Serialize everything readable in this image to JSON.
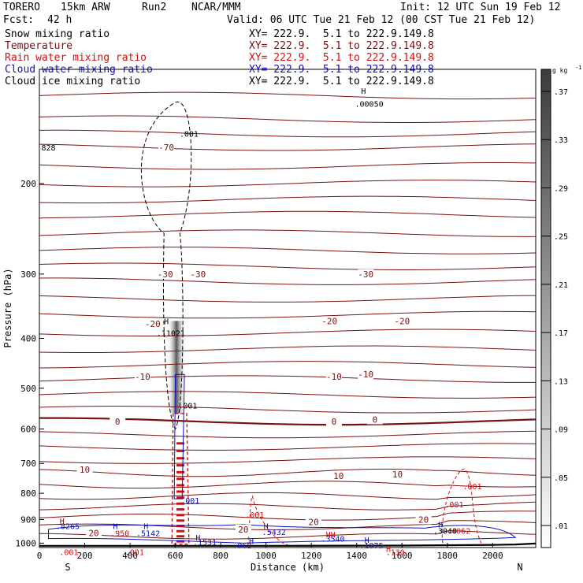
{
  "header": {
    "model": "TORERO",
    "resolution": "15km ARW",
    "run": "Run2",
    "center": "NCAR/MMM",
    "init": "Init: 12 UTC Sun 19 Feb 12",
    "fcst_label": "Fcst:",
    "fcst_hours": "42 h",
    "valid": "Valid: 06 UTC Tue 21 Feb 12 (00 CST Tue 21 Feb 12)"
  },
  "fields": [
    {
      "name": "Snow mixing ratio",
      "xy": "XY= 222.9.  5.1 to 222.9.149.8",
      "color": "#000000"
    },
    {
      "name": "Temperature",
      "xy": "XY= 222.9.  5.1 to 222.9.149.8",
      "color": "#7a1010"
    },
    {
      "name": "Rain water mixing ratio",
      "xy": "XY= 222.9.  5.1 to 222.9.149.8",
      "color": "#d01010"
    },
    {
      "name": "Cloud water mixing ratio",
      "xy": "XY= 222.9.  5.1 to 222.9.149.8",
      "color": "#1010c0"
    },
    {
      "name": "Cloud ice mixing ratio",
      "xy": "XY= 222.9.  5.1 to 222.9.149.8",
      "color": "#000000"
    }
  ],
  "chart_data": {
    "type": "cross-section contour",
    "xlabel": "Distance (km)",
    "ylabel": "Pressure (hPa)",
    "x_ticks": [
      0,
      200,
      400,
      600,
      800,
      1000,
      1200,
      1400,
      1600,
      1800,
      2000
    ],
    "xlim": [
      0,
      2190
    ],
    "y_ticks": [
      200,
      300,
      400,
      500,
      600,
      700,
      800,
      900,
      1000
    ],
    "ylim": [
      1020,
      120
    ],
    "y_scale": "log",
    "left_end": "S",
    "right_end": "N",
    "colorbar": {
      "unit": "g kg",
      "unit_sup": "-1",
      "ticks": [
        ".01",
        ".05",
        ".09",
        ".13",
        ".17",
        ".21",
        ".25",
        ".29",
        ".33",
        ".37"
      ]
    },
    "temperature_labels": [
      {
        "text": "-70",
        "x": 560,
        "p": 170
      },
      {
        "text": "-30",
        "x": 555,
        "p": 300
      },
      {
        "text": "-30",
        "x": 700,
        "p": 300
      },
      {
        "text": "-30",
        "x": 1440,
        "p": 300
      },
      {
        "text": "-20",
        "x": 500,
        "p": 375
      },
      {
        "text": "-20",
        "x": 1280,
        "p": 370
      },
      {
        "text": "-20",
        "x": 1600,
        "p": 370
      },
      {
        "text": "-10",
        "x": 455,
        "p": 475
      },
      {
        "text": "-10",
        "x": 1300,
        "p": 475
      },
      {
        "text": "-10",
        "x": 1440,
        "p": 470
      },
      {
        "text": "0",
        "x": 345,
        "p": 580
      },
      {
        "text": "0",
        "x": 1300,
        "p": 580
      },
      {
        "text": "0",
        "x": 1480,
        "p": 575
      },
      {
        "text": "10",
        "x": 200,
        "p": 720
      },
      {
        "text": "10",
        "x": 1320,
        "p": 740
      },
      {
        "text": "10",
        "x": 1580,
        "p": 735
      },
      {
        "text": "20",
        "x": 240,
        "p": 955
      },
      {
        "text": "20",
        "x": 900,
        "p": 940
      },
      {
        "text": "20",
        "x": 1210,
        "p": 910
      },
      {
        "text": "20",
        "x": 1695,
        "p": 900
      }
    ],
    "extrema_labels": [
      {
        "text": "H",
        "x": 100,
        "p": 905,
        "color": "#7a1010"
      },
      {
        "text": ".8265",
        "x": 125,
        "p": 925,
        "color": "#1010c0"
      },
      {
        "text": "H",
        "x": 335,
        "p": 925,
        "color": "#1010c0"
      },
      {
        "text": ".950",
        "x": 355,
        "p": 955,
        "color": "#d01010"
      },
      {
        "text": "H",
        "x": 470,
        "p": 925,
        "color": "#1010c0"
      },
      {
        "text": ".5142",
        "x": 480,
        "p": 955,
        "color": "#1010c0"
      },
      {
        "text": "H",
        "x": 700,
        "p": 975,
        "color": "#1010c0"
      },
      {
        "text": ".1531",
        "x": 730,
        "p": 995,
        "color": "#1010c0"
      },
      {
        "text": "H",
        "x": 935,
        "p": 990,
        "color": "#1010c0"
      },
      {
        "text": ".062",
        "x": 895,
        "p": 1010,
        "color": "#1010c0"
      },
      {
        "text": "H",
        "x": 1000,
        "p": 925,
        "color": "#1010c0"
      },
      {
        "text": ".5432",
        "x": 1035,
        "p": 950,
        "color": "#1010c0"
      },
      {
        "text": "HH",
        "x": 1285,
        "p": 960,
        "color": "#d01010"
      },
      {
        "text": ".3540",
        "x": 1295,
        "p": 980,
        "color": "#1010c0"
      },
      {
        "text": "H",
        "x": 1445,
        "p": 985,
        "color": "#1010c0"
      },
      {
        "text": ".1875",
        "x": 1465,
        "p": 1010,
        "color": "#1010c0"
      },
      {
        "text": "H",
        "x": 1540,
        "p": 1025,
        "color": "#d01010"
      },
      {
        "text": ".130",
        "x": 1570,
        "p": 1040,
        "color": "#d01010"
      },
      {
        "text": "H",
        "x": 1770,
        "p": 920,
        "color": "#1010c0"
      },
      {
        "text": ".3040",
        "x": 1790,
        "p": 945,
        "color": "#000000"
      },
      {
        "text": ".4062",
        "x": 1850,
        "p": 945,
        "color": "#d01010"
      },
      {
        "text": ".001",
        "x": 1910,
        "p": 775,
        "color": "#d01010"
      },
      {
        "text": ".001",
        "x": 1830,
        "p": 840,
        "color": "#d01010"
      },
      {
        "text": ".001",
        "x": 950,
        "p": 880,
        "color": "#d01010"
      },
      {
        "text": ".001",
        "x": 130,
        "p": 1040,
        "color": "#d01010"
      },
      {
        "text": ".001",
        "x": 420,
        "p": 1040,
        "color": "#d01010"
      },
      {
        "text": ".001",
        "x": 660,
        "p": 160,
        "color": "#000000"
      },
      {
        "text": ".001",
        "x": 655,
        "p": 540,
        "color": "#000000"
      },
      {
        "text": "H",
        "x": 560,
        "p": 370,
        "color": "#000000"
      },
      {
        "text": ".11021",
        "x": 580,
        "p": 390,
        "color": "#000000"
      },
      {
        "text": ".001",
        "x": 665,
        "p": 825,
        "color": "#1010c0"
      },
      {
        "text": "828",
        "x": 40,
        "p": 170,
        "color": "#000000"
      },
      {
        "text": "H",
        "x": 1430,
        "p": 132,
        "color": "#000000"
      },
      {
        "text": ".00050",
        "x": 1455,
        "p": 140,
        "color": "#000000"
      }
    ],
    "snow_peak": {
      "x": 605,
      "p_top": 370,
      "p_bottom": 560,
      "max": 0.37
    },
    "terrain": {
      "x": [
        0,
        200,
        600,
        800,
        1000,
        1600,
        2000,
        2100,
        2190
      ],
      "p": [
        1012,
        1012,
        1012,
        1012,
        1012,
        1011,
        1008,
        1006,
        1002
      ]
    }
  }
}
